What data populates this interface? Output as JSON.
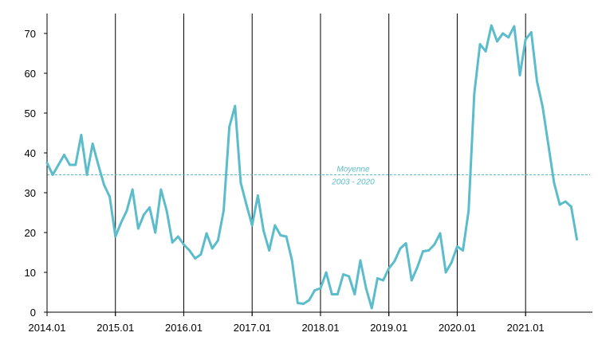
{
  "chart_data": {
    "type": "line",
    "title": "",
    "xlabel": "",
    "ylabel": "",
    "ylim": [
      0,
      75
    ],
    "xlim": [
      "2014-01",
      "2021-12"
    ],
    "grid": false,
    "y_ticks": [
      0,
      10,
      20,
      30,
      40,
      50,
      60,
      70
    ],
    "x_ticks": [
      "2014.01",
      "2015.01",
      "2016.01",
      "2017.01",
      "2018.01",
      "2019.01",
      "2020.01",
      "2021.01"
    ],
    "year_separators": [
      "2015-01",
      "2016-01",
      "2017-01",
      "2018-01",
      "2019-01",
      "2020-01",
      "2021-01"
    ],
    "colors": {
      "line": "#5bbccb",
      "reference": "#5bbccb",
      "axis": "#000000"
    },
    "reference_line": {
      "value": 34.5,
      "label_line1": "Moyenne",
      "label_line2": "2003 - 2020"
    },
    "series": [
      {
        "x": [
          "2014-01",
          "2014-02",
          "2014-03",
          "2014-04",
          "2014-05",
          "2014-06",
          "2014-07",
          "2014-08",
          "2014-09",
          "2014-10",
          "2014-11",
          "2014-12",
          "2015-01",
          "2015-02",
          "2015-03",
          "2015-04",
          "2015-05",
          "2015-06",
          "2015-07",
          "2015-08",
          "2015-09",
          "2015-10",
          "2015-11",
          "2015-12",
          "2016-01",
          "2016-02",
          "2016-03",
          "2016-04",
          "2016-05",
          "2016-06",
          "2016-07",
          "2016-08",
          "2016-09",
          "2016-10",
          "2016-11",
          "2016-12",
          "2017-01",
          "2017-02",
          "2017-03",
          "2017-04",
          "2017-05",
          "2017-06",
          "2017-07",
          "2017-08",
          "2017-09",
          "2017-10",
          "2017-11",
          "2017-12",
          "2018-01",
          "2018-02",
          "2018-03",
          "2018-04",
          "2018-05",
          "2018-06",
          "2018-07",
          "2018-08",
          "2018-09",
          "2018-10",
          "2018-11",
          "2018-12",
          "2019-01",
          "2019-02",
          "2019-03",
          "2019-04",
          "2019-05",
          "2019-06",
          "2019-07",
          "2019-08",
          "2019-09",
          "2019-10",
          "2019-11",
          "2019-12",
          "2020-01",
          "2020-02",
          "2020-03",
          "2020-04",
          "2020-05",
          "2020-06",
          "2020-07",
          "2020-08",
          "2020-09",
          "2020-10",
          "2020-11",
          "2020-12",
          "2021-01",
          "2021-02",
          "2021-03",
          "2021-04",
          "2021-05",
          "2021-06",
          "2021-07",
          "2021-08",
          "2021-09",
          "2021-10"
        ],
        "values": [
          37.5,
          34.5,
          37,
          39.5,
          37,
          37,
          44.5,
          34.5,
          42.3,
          37,
          32,
          29,
          19,
          22.5,
          25.5,
          30.8,
          21,
          24.5,
          26.3,
          20,
          30.8,
          25.5,
          17.5,
          19,
          17,
          15.5,
          13.5,
          14.5,
          19.8,
          16,
          18,
          25.5,
          46.5,
          51.8,
          32.5,
          27,
          21.8,
          29.3,
          20.5,
          15.5,
          21.8,
          19.3,
          19,
          13,
          2.3,
          2.1,
          3,
          5.5,
          6,
          10,
          4.5,
          4.5,
          9.5,
          9,
          4.5,
          13,
          6,
          1,
          8.5,
          8,
          11,
          12.8,
          16,
          17.3,
          8,
          11.3,
          15.3,
          15.5,
          17,
          19.8,
          10,
          12.5,
          16.5,
          15.5,
          25.5,
          55,
          67.3,
          65.5,
          72,
          68,
          70,
          69,
          71.8,
          59.5,
          68.5,
          70.3,
          58,
          51.5,
          42,
          32.5,
          27,
          27.8,
          26.5,
          18.3
        ]
      }
    ]
  }
}
